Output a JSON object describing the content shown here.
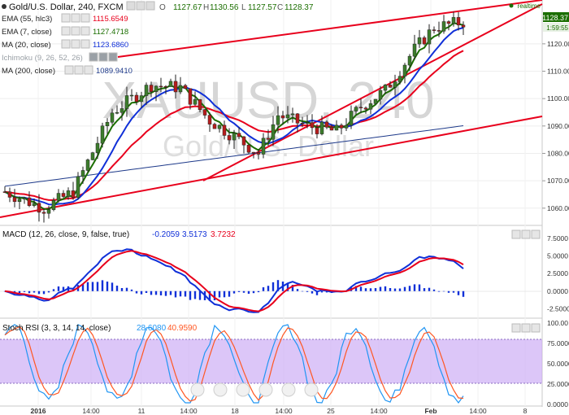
{
  "header": {
    "symbol": "Gold/U.S. Dollar, 240, FXCM",
    "ohlc": [
      "O",
      "1127.67",
      "H",
      "1130.56",
      "L",
      "1127.57",
      "C",
      "1128.37"
    ],
    "realtime": "realtime"
  },
  "watermark": {
    "symbol": "XAUUSD, 240",
    "description": "Gold/U.S. Dollar"
  },
  "indicators": [
    {
      "label": "EMA (55, hlc3)",
      "value": "1115.6549",
      "color": "#e8001c"
    },
    {
      "label": "EMA (7, close)",
      "value": "1127.4718",
      "color": "#1b6e00"
    },
    {
      "label": "MA (20, close)",
      "value": "1123.6860",
      "color": "#1030d8"
    },
    {
      "label": "Ichimoku (9, 26, 52, 26)",
      "value": "",
      "color": "#9aa0a6"
    },
    {
      "label": "MA (200, close)",
      "value": "1089.9410",
      "color": "#1e3a8a"
    }
  ],
  "price_axis": {
    "ticks": [
      "1120.00",
      "1110.00",
      "1100.00",
      "1090.00",
      "1080.00",
      "1070.00",
      "1060.00"
    ],
    "current_price": "1128.37",
    "countdown": "1:59:55"
  },
  "macd": {
    "label": "MACD (12, 26, close, 9, false, true)",
    "values": [
      "-0.2059",
      "3.5173",
      "3.7232"
    ],
    "ticks": [
      "7.5000",
      "5.0000",
      "2.5000",
      "0.0000",
      "-2.5000"
    ]
  },
  "stoch_rsi": {
    "label": "Stoch RSI (3, 3, 14, 14, close)",
    "values": [
      "28.6080",
      "40.9590"
    ],
    "ticks": [
      "100.00",
      "75.0000",
      "50.0000",
      "25.0000",
      "0.0000"
    ]
  },
  "time_axis": {
    "ticks": [
      "2016",
      "14:00",
      "11",
      "14:00",
      "18",
      "14:00",
      "25",
      "14:00",
      "Feb",
      "14:00",
      "8"
    ]
  },
  "colors": {
    "up_candle": "#3c7d2c",
    "down_candle": "#b71c1c",
    "trendline": "#e8001c",
    "stoch_band": "#c9a7f5",
    "macd_line": "#1030d8",
    "signal_line": "#e8001c"
  }
}
